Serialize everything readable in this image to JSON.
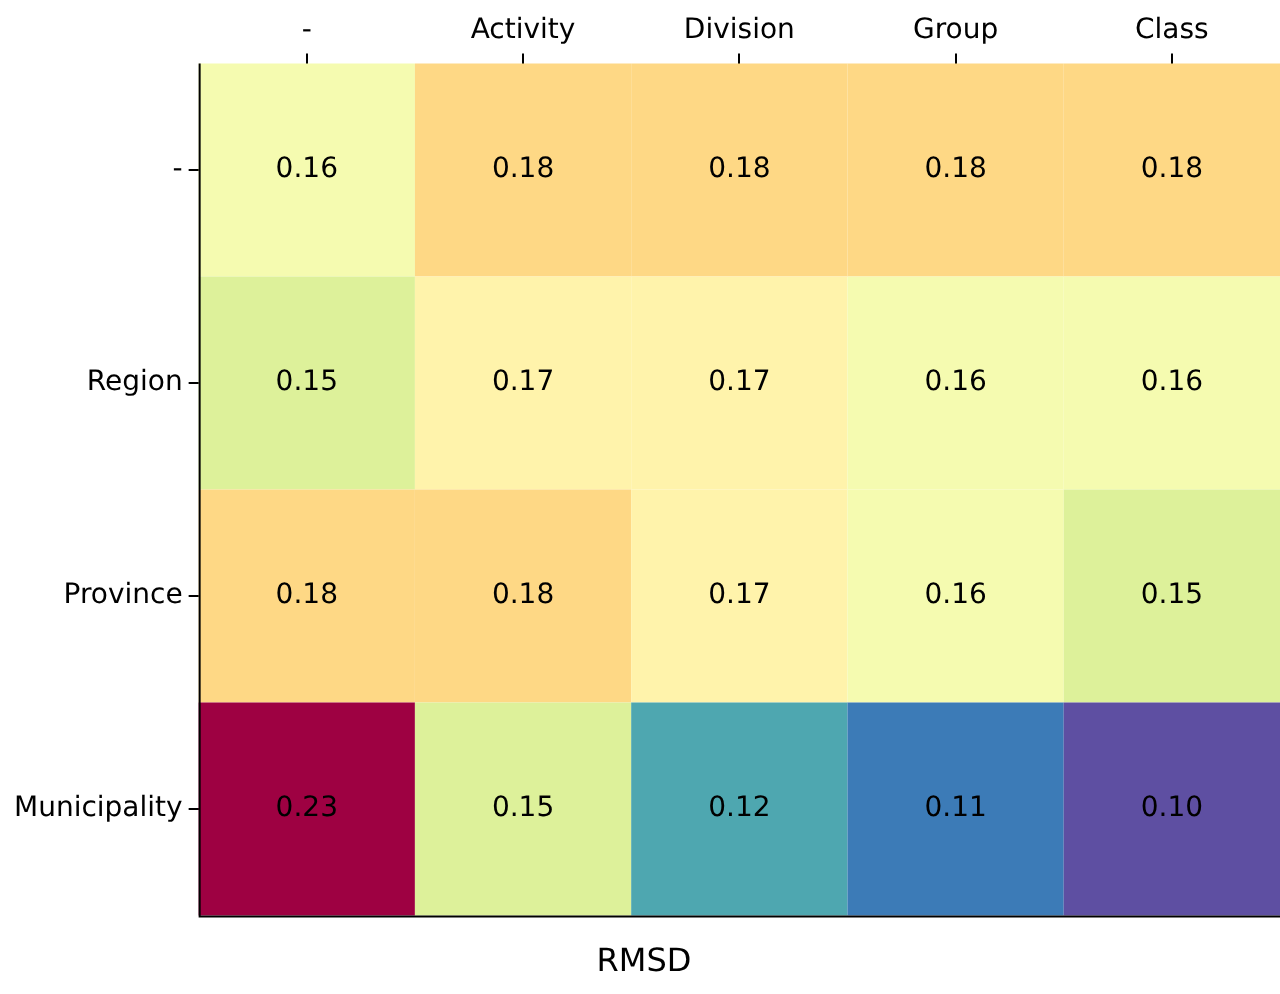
{
  "chart_data": {
    "type": "heatmap",
    "xlabel": "RMSD",
    "categories": [
      "-",
      "Activity",
      "Division",
      "Group",
      "Class"
    ],
    "y_categories": [
      "-",
      "Region",
      "Province",
      "Municipality"
    ],
    "cells": [
      [
        0.16,
        0.18,
        0.18,
        0.18,
        0.18
      ],
      [
        0.15,
        0.17,
        0.17,
        0.16,
        0.16
      ],
      [
        0.18,
        0.18,
        0.17,
        0.16,
        0.15
      ],
      [
        0.23,
        0.15,
        0.12,
        0.11,
        0.1
      ]
    ],
    "cell_labels": [
      [
        "0.16",
        "0.18",
        "0.18",
        "0.18",
        "0.18"
      ],
      [
        "0.15",
        "0.17",
        "0.17",
        "0.16",
        "0.16"
      ],
      [
        "0.18",
        "0.18",
        "0.17",
        "0.16",
        "0.15"
      ],
      [
        "0.23",
        "0.15",
        "0.12",
        "0.11",
        "0.10"
      ]
    ],
    "grid": false
  }
}
